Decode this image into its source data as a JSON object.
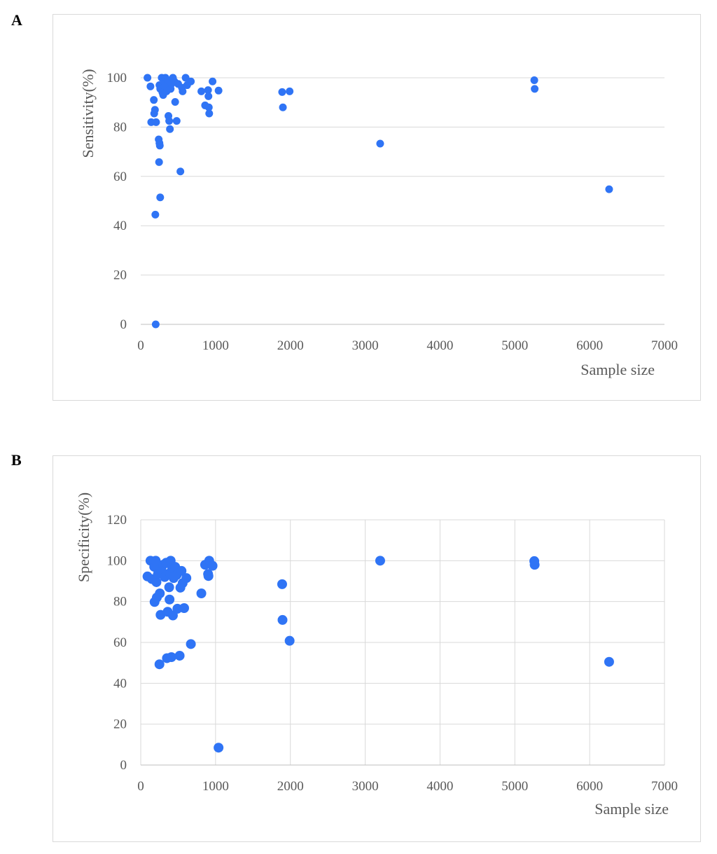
{
  "panels": {
    "a": {
      "letter": "A"
    },
    "b": {
      "letter": "B"
    }
  },
  "colors": {
    "point": "#2f74f5",
    "grid": "#d9d9d9",
    "axis": "#bfbfbf",
    "text": "#595959"
  },
  "chart_data": [
    {
      "type": "scatter",
      "title": "",
      "xlabel": "Sample size",
      "ylabel": "Sensitivity(%)",
      "xlim": [
        0,
        7000
      ],
      "ylim": [
        0,
        100
      ],
      "x_ticks": [
        0,
        1000,
        2000,
        3000,
        4000,
        5000,
        6000,
        7000
      ],
      "y_ticks": [
        0,
        20,
        40,
        60,
        80,
        100
      ],
      "grid": "horizontal",
      "legend": "none",
      "points": [
        {
          "x": 90,
          "y": 100
        },
        {
          "x": 130,
          "y": 96.5
        },
        {
          "x": 140,
          "y": 82
        },
        {
          "x": 175,
          "y": 91
        },
        {
          "x": 180,
          "y": 85.5
        },
        {
          "x": 190,
          "y": 87
        },
        {
          "x": 195,
          "y": 44.5
        },
        {
          "x": 200,
          "y": 0
        },
        {
          "x": 205,
          "y": 82
        },
        {
          "x": 240,
          "y": 75
        },
        {
          "x": 245,
          "y": 65.8
        },
        {
          "x": 250,
          "y": 73.5
        },
        {
          "x": 255,
          "y": 72.5
        },
        {
          "x": 260,
          "y": 51.5
        },
        {
          "x": 250,
          "y": 97
        },
        {
          "x": 260,
          "y": 95.5
        },
        {
          "x": 280,
          "y": 100
        },
        {
          "x": 290,
          "y": 94
        },
        {
          "x": 300,
          "y": 93
        },
        {
          "x": 310,
          "y": 98.5
        },
        {
          "x": 320,
          "y": 96.5
        },
        {
          "x": 330,
          "y": 100
        },
        {
          "x": 345,
          "y": 94.5
        },
        {
          "x": 360,
          "y": 99
        },
        {
          "x": 370,
          "y": 84.5
        },
        {
          "x": 380,
          "y": 82.5
        },
        {
          "x": 390,
          "y": 79.2
        },
        {
          "x": 400,
          "y": 95.5
        },
        {
          "x": 410,
          "y": 97.5
        },
        {
          "x": 430,
          "y": 100
        },
        {
          "x": 450,
          "y": 98.5
        },
        {
          "x": 460,
          "y": 90.2
        },
        {
          "x": 480,
          "y": 82.5
        },
        {
          "x": 500,
          "y": 97.5
        },
        {
          "x": 530,
          "y": 62
        },
        {
          "x": 550,
          "y": 96
        },
        {
          "x": 560,
          "y": 94.5
        },
        {
          "x": 600,
          "y": 100
        },
        {
          "x": 620,
          "y": 97
        },
        {
          "x": 670,
          "y": 98.5
        },
        {
          "x": 810,
          "y": 94.5
        },
        {
          "x": 860,
          "y": 88.8
        },
        {
          "x": 900,
          "y": 95
        },
        {
          "x": 905,
          "y": 92.5
        },
        {
          "x": 910,
          "y": 88
        },
        {
          "x": 915,
          "y": 85.5
        },
        {
          "x": 960,
          "y": 98.5
        },
        {
          "x": 1040,
          "y": 94.8
        },
        {
          "x": 1890,
          "y": 94.2
        },
        {
          "x": 1900,
          "y": 88
        },
        {
          "x": 1990,
          "y": 94.5
        },
        {
          "x": 3200,
          "y": 73.3
        },
        {
          "x": 5260,
          "y": 99
        },
        {
          "x": 5265,
          "y": 95.5
        },
        {
          "x": 6260,
          "y": 54.8
        }
      ]
    },
    {
      "type": "scatter",
      "title": "",
      "xlabel": "Sample size",
      "ylabel": "Specificity(%)",
      "xlim": [
        0,
        7000
      ],
      "ylim": [
        0,
        120
      ],
      "x_ticks": [
        0,
        1000,
        2000,
        3000,
        4000,
        5000,
        6000,
        7000
      ],
      "y_ticks": [
        0,
        20,
        40,
        60,
        80,
        100,
        120
      ],
      "grid": "both",
      "legend": "none",
      "points": [
        {
          "x": 90,
          "y": 92.3
        },
        {
          "x": 130,
          "y": 100
        },
        {
          "x": 150,
          "y": 91
        },
        {
          "x": 180,
          "y": 97
        },
        {
          "x": 185,
          "y": 79.8
        },
        {
          "x": 200,
          "y": 100
        },
        {
          "x": 210,
          "y": 89.5
        },
        {
          "x": 215,
          "y": 82
        },
        {
          "x": 230,
          "y": 93.5
        },
        {
          "x": 250,
          "y": 49.3
        },
        {
          "x": 255,
          "y": 84
        },
        {
          "x": 265,
          "y": 73.5
        },
        {
          "x": 280,
          "y": 95
        },
        {
          "x": 300,
          "y": 98
        },
        {
          "x": 320,
          "y": 92
        },
        {
          "x": 340,
          "y": 99
        },
        {
          "x": 350,
          "y": 52.3
        },
        {
          "x": 360,
          "y": 75
        },
        {
          "x": 380,
          "y": 87
        },
        {
          "x": 385,
          "y": 81
        },
        {
          "x": 390,
          "y": 94
        },
        {
          "x": 400,
          "y": 100
        },
        {
          "x": 410,
          "y": 52.8
        },
        {
          "x": 420,
          "y": 96.5
        },
        {
          "x": 430,
          "y": 73.2
        },
        {
          "x": 440,
          "y": 91.5
        },
        {
          "x": 460,
          "y": 97
        },
        {
          "x": 480,
          "y": 93
        },
        {
          "x": 490,
          "y": 76.5
        },
        {
          "x": 520,
          "y": 53.5
        },
        {
          "x": 530,
          "y": 86.8
        },
        {
          "x": 545,
          "y": 95
        },
        {
          "x": 560,
          "y": 89
        },
        {
          "x": 580,
          "y": 76.8
        },
        {
          "x": 610,
          "y": 91.5
        },
        {
          "x": 670,
          "y": 59.2
        },
        {
          "x": 810,
          "y": 84
        },
        {
          "x": 860,
          "y": 98
        },
        {
          "x": 900,
          "y": 93.5
        },
        {
          "x": 905,
          "y": 92.5
        },
        {
          "x": 915,
          "y": 100
        },
        {
          "x": 960,
          "y": 97.5
        },
        {
          "x": 1040,
          "y": 8.5
        },
        {
          "x": 1890,
          "y": 88.5
        },
        {
          "x": 1895,
          "y": 71
        },
        {
          "x": 1990,
          "y": 60.8
        },
        {
          "x": 3200,
          "y": 100
        },
        {
          "x": 5260,
          "y": 99.8
        },
        {
          "x": 5265,
          "y": 98
        },
        {
          "x": 6260,
          "y": 50.5
        }
      ]
    }
  ]
}
